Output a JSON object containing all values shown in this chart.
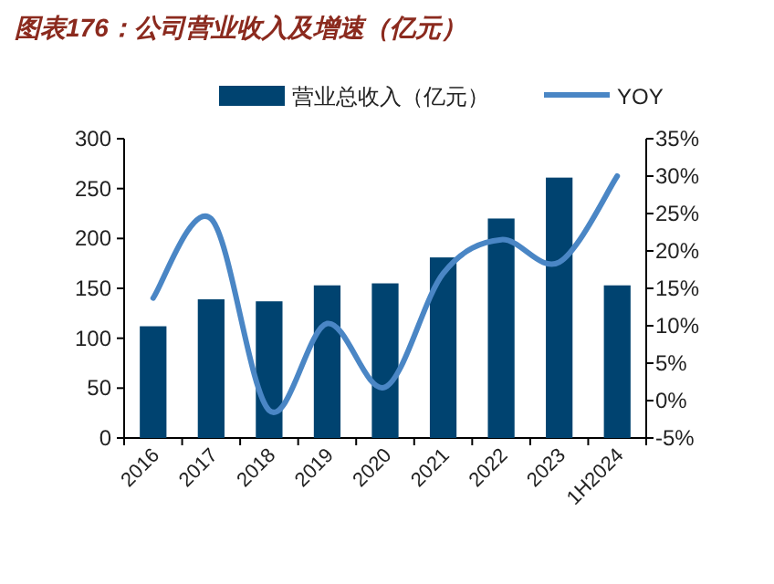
{
  "chart_data": {
    "type": "bar",
    "title": "图表176：公司营业收入及增速（亿元）",
    "categories": [
      "2016",
      "2017",
      "2018",
      "2019",
      "2020",
      "2021",
      "2022",
      "2023",
      "1H2024"
    ],
    "series": [
      {
        "name": "营业总收入（亿元）",
        "color": "#004370",
        "values": [
          112,
          139,
          137,
          153,
          155,
          181,
          220,
          261,
          153
        ]
      },
      {
        "name": "YOY",
        "type": "line",
        "axis": "y2",
        "color": "#4a86c5",
        "values": [
          13.7,
          24.3,
          -1.3,
          10.3,
          1.8,
          17,
          21.5,
          18.5,
          30
        ]
      }
    ],
    "ylim": [
      0,
      300
    ],
    "yticks": [
      0,
      50,
      100,
      150,
      200,
      250,
      300
    ],
    "y2lim": [
      -5,
      35
    ],
    "y2ticks": [
      {
        "value": -5,
        "label": "-5%"
      },
      {
        "value": 0,
        "label": "0%"
      },
      {
        "value": 5,
        "label": "5%"
      },
      {
        "value": 10,
        "label": "10%"
      },
      {
        "value": 15,
        "label": "15%"
      },
      {
        "value": 20,
        "label": "20%"
      },
      {
        "value": 25,
        "label": "25%"
      },
      {
        "value": 30,
        "label": "30%"
      },
      {
        "value": 35,
        "label": "35%"
      }
    ],
    "legend": "top",
    "grid": false
  }
}
